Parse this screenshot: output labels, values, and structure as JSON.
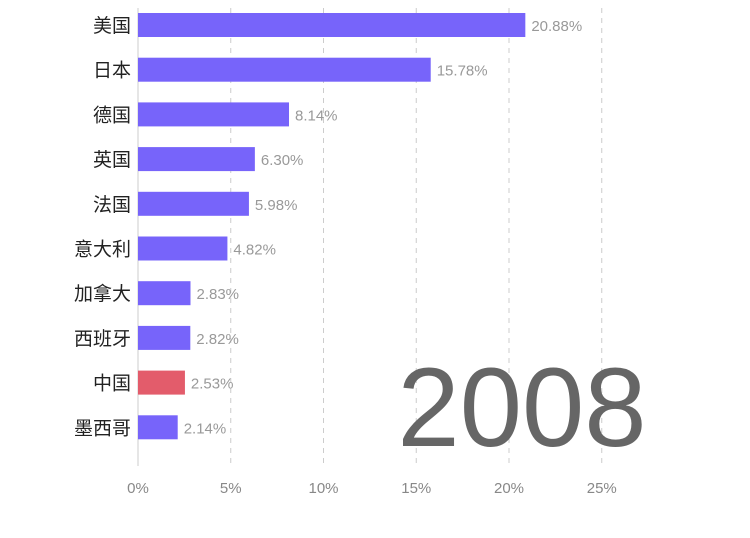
{
  "chart_data": {
    "type": "bar",
    "orientation": "horizontal",
    "title": "",
    "xlabel": "",
    "ylabel": "",
    "xlim": [
      0,
      25
    ],
    "x_ticks": [
      0,
      5,
      10,
      15,
      20,
      25
    ],
    "tick_format": "{v}%",
    "grid": true,
    "year": "2008",
    "categories": [
      "美国",
      "日本",
      "德国",
      "英国",
      "法国",
      "意大利",
      "加拿大",
      "西班牙",
      "中国",
      "墨西哥"
    ],
    "values": [
      20.88,
      15.78,
      8.14,
      6.3,
      5.98,
      4.82,
      2.83,
      2.82,
      2.53,
      2.14
    ],
    "value_labels": [
      "20.88%",
      "15.78%",
      "8.14%",
      "6.30%",
      "5.98%",
      "4.82%",
      "2.83%",
      "2.82%",
      "2.53%",
      "2.14%"
    ],
    "colors": {
      "default": "#7764fa",
      "highlight": "#e35c6b",
      "highlight_category": "中国"
    }
  }
}
